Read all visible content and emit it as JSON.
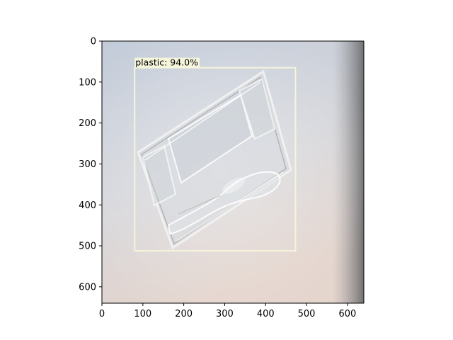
{
  "image": {
    "width": 640,
    "height": 640,
    "description_colors": {
      "bg_top": "#c5cedb",
      "bg_bottom": "#e3d6cf",
      "right_shadow": "#6f6f70"
    }
  },
  "axes": {
    "x_ticks": [
      0,
      100,
      200,
      300,
      400,
      500,
      600
    ],
    "y_ticks": [
      0,
      100,
      200,
      300,
      400,
      500,
      600
    ],
    "xlim": [
      0,
      640
    ],
    "ylim": [
      640,
      0
    ]
  },
  "detections": [
    {
      "label": "plastic: 94.0%",
      "box": {
        "x_min": 80,
        "y_min": 65,
        "x_max": 473,
        "y_max": 512
      },
      "box_color": "#f5f5dc",
      "label_bg": "#f5f5dc"
    }
  ]
}
